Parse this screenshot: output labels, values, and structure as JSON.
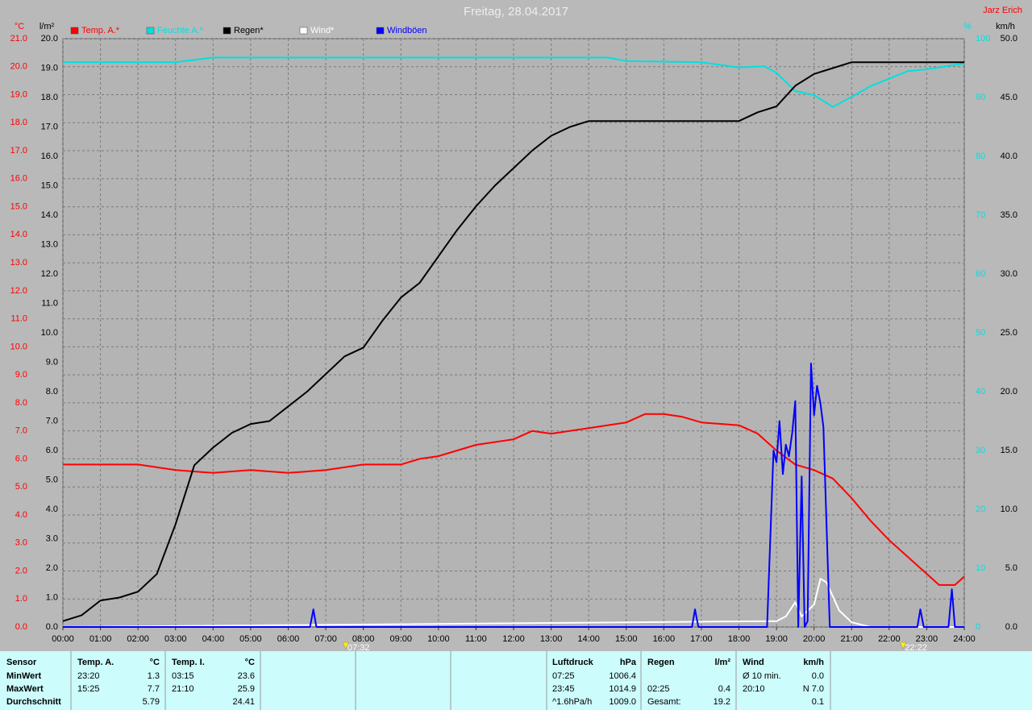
{
  "chart_data": {
    "type": "line",
    "title": "Freitag, 28.04.2017",
    "station": "Jarz Erich",
    "xlim": [
      0,
      24
    ],
    "xticks": [
      {
        "value": 0,
        "label": "00:00"
      },
      {
        "value": 1,
        "label": "01:00"
      },
      {
        "value": 2,
        "label": "02:00"
      },
      {
        "value": 3,
        "label": "03:00"
      },
      {
        "value": 4,
        "label": "04:00"
      },
      {
        "value": 5,
        "label": "05:00"
      },
      {
        "value": 6,
        "label": "06:00"
      },
      {
        "value": 7,
        "label": "07:00"
      },
      {
        "value": 8,
        "label": "08:00"
      },
      {
        "value": 9,
        "label": "09:00"
      },
      {
        "value": 10,
        "label": "10:00"
      },
      {
        "value": 11,
        "label": "11:00"
      },
      {
        "value": 12,
        "label": "12:00"
      },
      {
        "value": 13,
        "label": "13:00"
      },
      {
        "value": 14,
        "label": "14:00"
      },
      {
        "value": 15,
        "label": "15:00"
      },
      {
        "value": 16,
        "label": "16:00"
      },
      {
        "value": 17,
        "label": "17:00"
      },
      {
        "value": 18,
        "label": "18:00"
      },
      {
        "value": 19,
        "label": "19:00"
      },
      {
        "value": 20,
        "label": "20:00"
      },
      {
        "value": 21,
        "label": "21:00"
      },
      {
        "value": 22,
        "label": "22:00"
      },
      {
        "value": 23,
        "label": "23:00"
      },
      {
        "value": 24,
        "label": "24:00"
      }
    ],
    "ylabel": "°C",
    "ylim": [
      0,
      21
    ],
    "yticks": [
      {
        "value": 0,
        "label": "0.0"
      },
      {
        "value": 1,
        "label": "1.0"
      },
      {
        "value": 2,
        "label": "2.0"
      },
      {
        "value": 3,
        "label": "3.0"
      },
      {
        "value": 4,
        "label": "4.0"
      },
      {
        "value": 5,
        "label": "5.0"
      },
      {
        "value": 6,
        "label": "6.0"
      },
      {
        "value": 7,
        "label": "7.0"
      },
      {
        "value": 8,
        "label": "8.0"
      },
      {
        "value": 9,
        "label": "9.0"
      },
      {
        "value": 10,
        "label": "10.0"
      },
      {
        "value": 11,
        "label": "11.0"
      },
      {
        "value": 12,
        "label": "12.0"
      },
      {
        "value": 13,
        "label": "13.0"
      },
      {
        "value": 14,
        "label": "14.0"
      },
      {
        "value": 15,
        "label": "15.0"
      },
      {
        "value": 16,
        "label": "16.0"
      },
      {
        "value": 17,
        "label": "17.0"
      },
      {
        "value": 18,
        "label": "18.0"
      },
      {
        "value": 19,
        "label": "19.0"
      },
      {
        "value": 20,
        "label": "20.0"
      },
      {
        "value": 21,
        "label": "21.0"
      }
    ],
    "y2label": "l/m²",
    "y2lim": [
      0,
      20
    ],
    "y2ticks": [
      {
        "value": 0,
        "label": "0.0"
      },
      {
        "value": 1,
        "label": "1.0"
      },
      {
        "value": 2,
        "label": "2.0"
      },
      {
        "value": 3,
        "label": "3.0"
      },
      {
        "value": 4,
        "label": "4.0"
      },
      {
        "value": 5,
        "label": "5.0"
      },
      {
        "value": 6,
        "label": "6.0"
      },
      {
        "value": 7,
        "label": "7.0"
      },
      {
        "value": 8,
        "label": "8.0"
      },
      {
        "value": 9,
        "label": "9.0"
      },
      {
        "value": 10,
        "label": "10.0"
      },
      {
        "value": 11,
        "label": "11.0"
      },
      {
        "value": 12,
        "label": "12.0"
      },
      {
        "value": 13,
        "label": "13.0"
      },
      {
        "value": 14,
        "label": "14.0"
      },
      {
        "value": 15,
        "label": "15.0"
      },
      {
        "value": 16,
        "label": "16.0"
      },
      {
        "value": 17,
        "label": "17.0"
      },
      {
        "value": 18,
        "label": "18.0"
      },
      {
        "value": 19,
        "label": "19.0"
      },
      {
        "value": 20,
        "label": "20.0"
      }
    ],
    "y3label": "%",
    "y3lim": [
      0,
      100
    ],
    "y3ticks": [
      0,
      10,
      20,
      30,
      40,
      50,
      60,
      70,
      80,
      90,
      100
    ],
    "y4label": "km/h",
    "y4lim": [
      0,
      50
    ],
    "y4ticks": [
      {
        "value": 0,
        "label": "0.0"
      },
      {
        "value": 5,
        "label": "5.0"
      },
      {
        "value": 10,
        "label": "10.0"
      },
      {
        "value": 15,
        "label": "15.0"
      },
      {
        "value": 20,
        "label": "20.0"
      },
      {
        "value": 25,
        "label": "25.0"
      },
      {
        "value": 30,
        "label": "30.0"
      },
      {
        "value": 35,
        "label": "35.0"
      },
      {
        "value": 40,
        "label": "40.0"
      },
      {
        "value": 45,
        "label": "45.0"
      },
      {
        "value": 50,
        "label": "50.0"
      }
    ],
    "axis_colors": {
      "y": "#ff0000",
      "y2": "#000000",
      "y3": "#00e0e0",
      "y4": "#000000"
    },
    "grid": true,
    "series": [
      {
        "name": "Temp. A.*",
        "color": "#ff0000",
        "axis": "y",
        "x": [
          0,
          1,
          2,
          3,
          4,
          5,
          6,
          7,
          8,
          9,
          9.5,
          10,
          11,
          12,
          12.5,
          13,
          14,
          15,
          15.5,
          16,
          16.5,
          17,
          18,
          18.5,
          19,
          19.5,
          20,
          20.5,
          21,
          21.5,
          22,
          22.5,
          23,
          23.33,
          23.75,
          24
        ],
        "values": [
          5.8,
          5.8,
          5.8,
          5.6,
          5.5,
          5.6,
          5.5,
          5.6,
          5.8,
          5.8,
          6.0,
          6.1,
          6.5,
          6.7,
          7.0,
          6.9,
          7.1,
          7.3,
          7.6,
          7.6,
          7.5,
          7.3,
          7.2,
          6.9,
          6.3,
          5.8,
          5.6,
          5.3,
          4.6,
          3.8,
          3.1,
          2.5,
          1.9,
          1.5,
          1.5,
          1.8
        ]
      },
      {
        "name": "Feuchte A.*",
        "color": "#00e0e0",
        "axis": "y3",
        "x": [
          0,
          3,
          4,
          14.5,
          15,
          17,
          18,
          18.67,
          19,
          19.5,
          20,
          20.5,
          21,
          21.5,
          22,
          22.5,
          23,
          24
        ],
        "values": [
          96.0,
          96.0,
          96.8,
          96.8,
          96.2,
          96.0,
          95.1,
          95.3,
          94.2,
          91.1,
          90.4,
          88.4,
          90.1,
          91.9,
          93.2,
          94.5,
          94.8,
          95.8
        ]
      },
      {
        "name": "Regen*",
        "color": "#000000",
        "axis": "y2",
        "x": [
          0,
          0.5,
          1,
          1.5,
          2,
          2.5,
          3,
          3.5,
          4,
          4.5,
          5,
          5.5,
          6,
          6.5,
          7,
          7.5,
          8,
          8.5,
          9,
          9.5,
          10,
          10.5,
          11,
          11.5,
          12,
          12.5,
          13,
          13.5,
          14,
          15,
          18,
          18.5,
          19,
          19.5,
          20,
          20.5,
          21,
          24
        ],
        "values": [
          0.2,
          0.4,
          0.9,
          1.0,
          1.2,
          1.8,
          3.5,
          5.5,
          6.1,
          6.6,
          6.9,
          7.0,
          7.5,
          8.0,
          8.6,
          9.2,
          9.5,
          10.4,
          11.2,
          11.7,
          12.6,
          13.5,
          14.3,
          15.0,
          15.6,
          16.2,
          16.7,
          17.0,
          17.2,
          17.2,
          17.2,
          17.5,
          17.7,
          18.4,
          18.8,
          19.0,
          19.2,
          19.2
        ]
      },
      {
        "name": "Wind*",
        "color": "#ffffff",
        "axis": "y4",
        "x": [
          0,
          19,
          19.25,
          19.5,
          19.67,
          20,
          20.17,
          20.33,
          20.67,
          21,
          21.5,
          24
        ],
        "values": [
          0,
          0.5,
          0.9,
          2.1,
          0.9,
          1.9,
          4.1,
          3.8,
          1.4,
          0.4,
          0,
          0
        ]
      },
      {
        "name": "Windböen",
        "color": "#0000ff",
        "axis": "y4",
        "x": [
          0,
          6.58,
          6.67,
          6.75,
          16.75,
          16.83,
          16.92,
          18.75,
          18.92,
          19,
          19.08,
          19.17,
          19.25,
          19.33,
          19.42,
          19.5,
          19.58,
          19.67,
          19.75,
          19.83,
          19.92,
          20,
          20.08,
          20.17,
          20.25,
          20.42,
          22.75,
          22.83,
          22.92,
          23.58,
          23.67,
          23.75,
          24
        ],
        "values": [
          0,
          0,
          1.5,
          0,
          0,
          1.5,
          0,
          0,
          15.0,
          14.0,
          17.5,
          13.0,
          15.5,
          14.5,
          16.5,
          19.2,
          0,
          12.8,
          0,
          0.5,
          22.4,
          18.0,
          20.5,
          19.0,
          17.0,
          0,
          0,
          1.5,
          0,
          0,
          3.2,
          0,
          0
        ]
      }
    ],
    "annotations": [
      {
        "text": "07:32",
        "x": 7.53
      },
      {
        "text": "22:22",
        "x": 22.37
      }
    ]
  },
  "table": {
    "rows": [
      [
        "Sensor",
        "Temp. A.",
        "°C",
        "Temp. I.",
        "°C",
        "Luftdruck",
        "hPa",
        "Regen",
        "l/m²",
        "Wind",
        "km/h"
      ],
      [
        "MinWert",
        "23:20",
        "1.3",
        "03:15",
        "23.6",
        "07:25",
        "1006.4",
        null,
        null,
        "Ø 10 min.",
        "0.0"
      ],
      [
        "MaxWert",
        "15:25",
        "7.7",
        "21:10",
        "25.9",
        "23:45",
        "1014.9",
        "02:25",
        "0.4",
        "20:10",
        "N 7.0"
      ],
      [
        "Durchschnitt",
        null,
        "5.79",
        null,
        "24.41",
        "^1.6hPa/h",
        "1009.0",
        "Gesamt:",
        "19.2",
        null,
        "0.1"
      ]
    ]
  }
}
